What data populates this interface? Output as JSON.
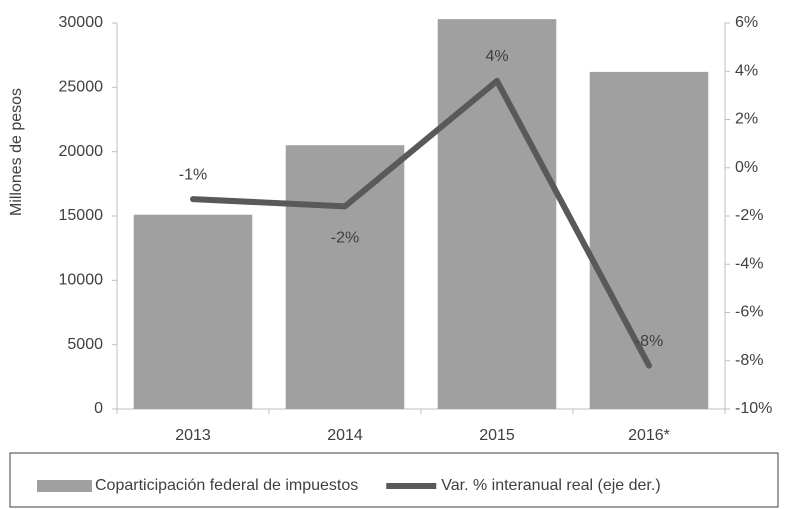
{
  "chart_data": {
    "type": "bar_line",
    "y_label": "Millones de pesos",
    "categories": [
      "2013",
      "2014",
      "2015",
      "2016*"
    ],
    "series": [
      {
        "name": "Coparticipación federal de impuestos",
        "type": "bar",
        "color": "#a0a0a0",
        "values": [
          15100,
          20500,
          30300,
          26200
        ]
      },
      {
        "name": "Var. % interanual real (eje der.)",
        "type": "line",
        "axis": "y2",
        "color": "#595959",
        "values": [
          -1.3,
          -1.6,
          3.6,
          -8.2
        ],
        "value_labels": [
          "-1%",
          "-2%",
          "4%",
          "-8%"
        ]
      }
    ],
    "ylim": [
      0,
      30000
    ],
    "yticks": [
      0,
      5000,
      10000,
      15000,
      20000,
      25000,
      30000
    ],
    "y2lim": [
      -10,
      6
    ],
    "y2ticks": [
      {
        "value": -10,
        "label": "-10%"
      },
      {
        "value": -8,
        "label": "-8%"
      },
      {
        "value": -6,
        "label": "-6%"
      },
      {
        "value": -4,
        "label": "-4%"
      },
      {
        "value": -2,
        "label": "-2%"
      },
      {
        "value": 0,
        "label": "0%"
      },
      {
        "value": 2,
        "label": "2%"
      },
      {
        "value": 4,
        "label": "4%"
      },
      {
        "value": 6,
        "label": "6%"
      }
    ],
    "legend": "bottom"
  }
}
